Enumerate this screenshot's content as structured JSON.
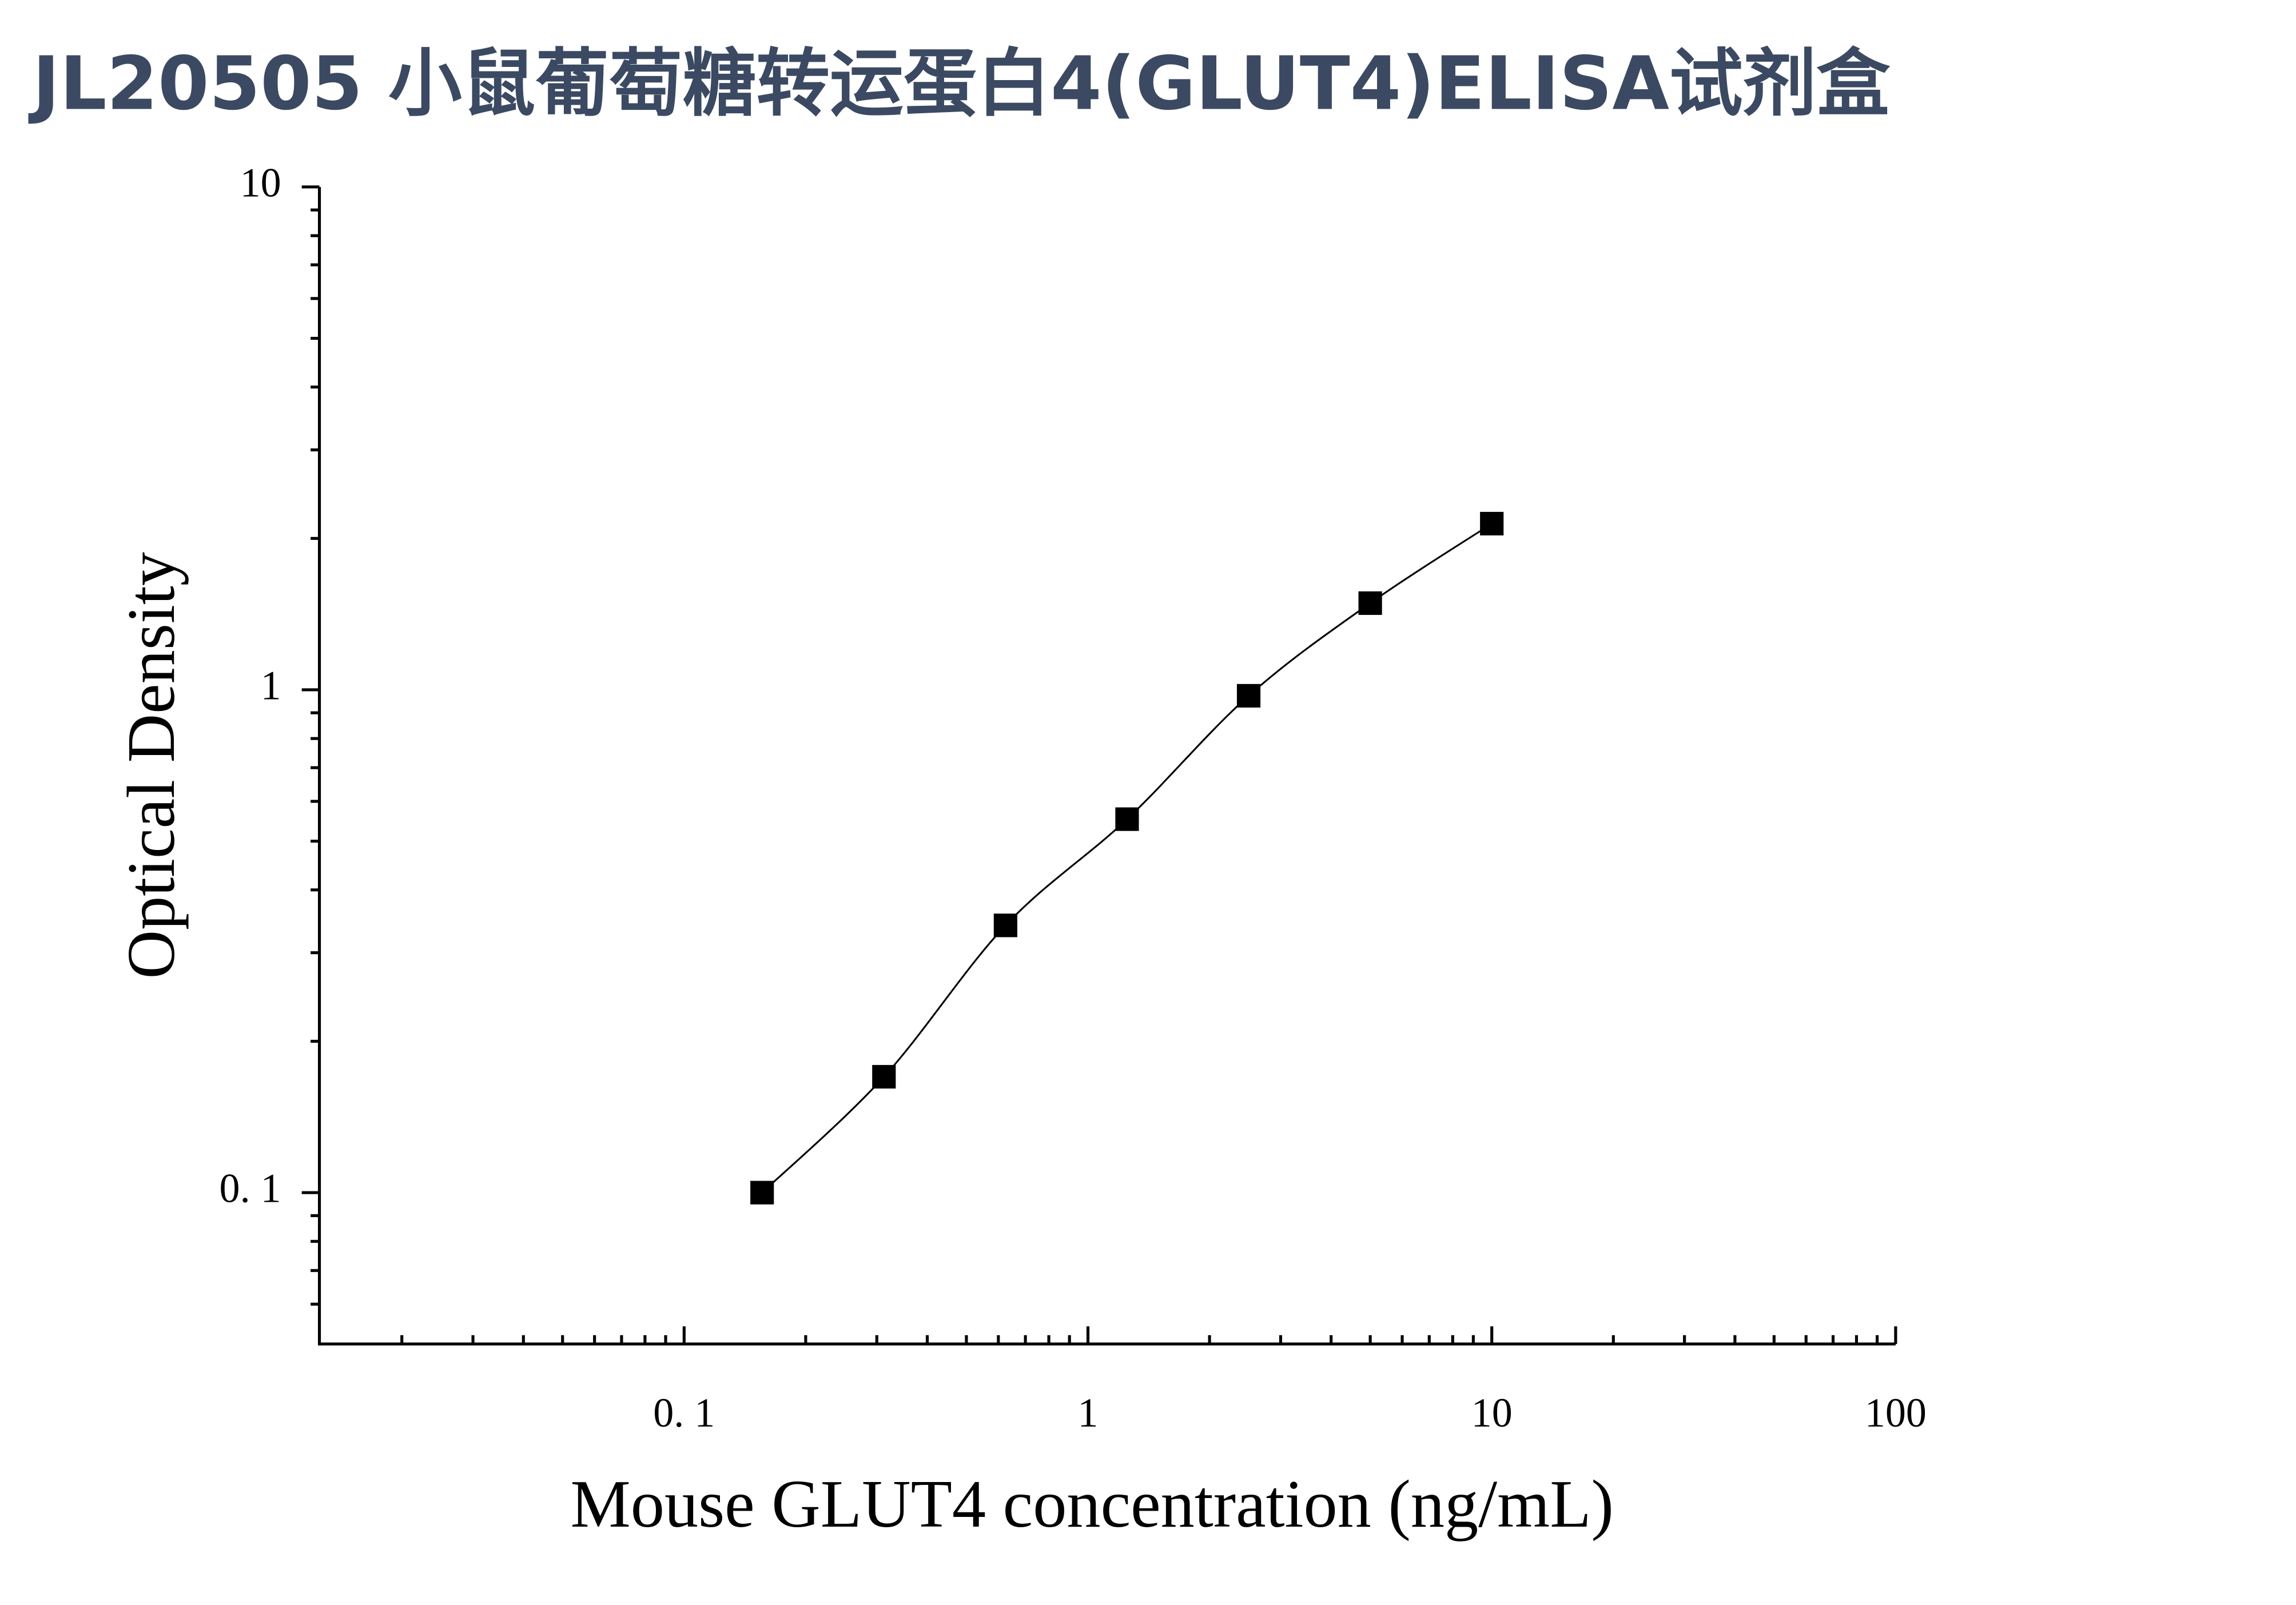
{
  "chart_data": {
    "type": "scatter",
    "title": "JL20505 小鼠葡萄糖转运蛋白4(GLUT4)ELISA试剂盒",
    "x_label": "Mouse GLUT4 concentration (ng/mL)",
    "y_label": "Optical Density",
    "x_scale": "log",
    "y_scale": "log",
    "minor_ticks": true,
    "line": true,
    "xlim": [
      0.0125,
      100
    ],
    "ylim": [
      0.05,
      10
    ],
    "xticks": [
      {
        "value": 0.1,
        "label": "0. 1"
      },
      1,
      10,
      100
    ],
    "yticks": [
      {
        "value": 0.1,
        "label": "0. 1"
      },
      1,
      10
    ],
    "series": [
      {
        "color": "#000000",
        "x": [
          0.156,
          0.3125,
          0.625,
          1.25,
          2.5,
          5,
          10
        ],
        "values": [
          0.1,
          0.17,
          0.34,
          0.553,
          0.973,
          1.487,
          2.14
        ]
      }
    ]
  }
}
